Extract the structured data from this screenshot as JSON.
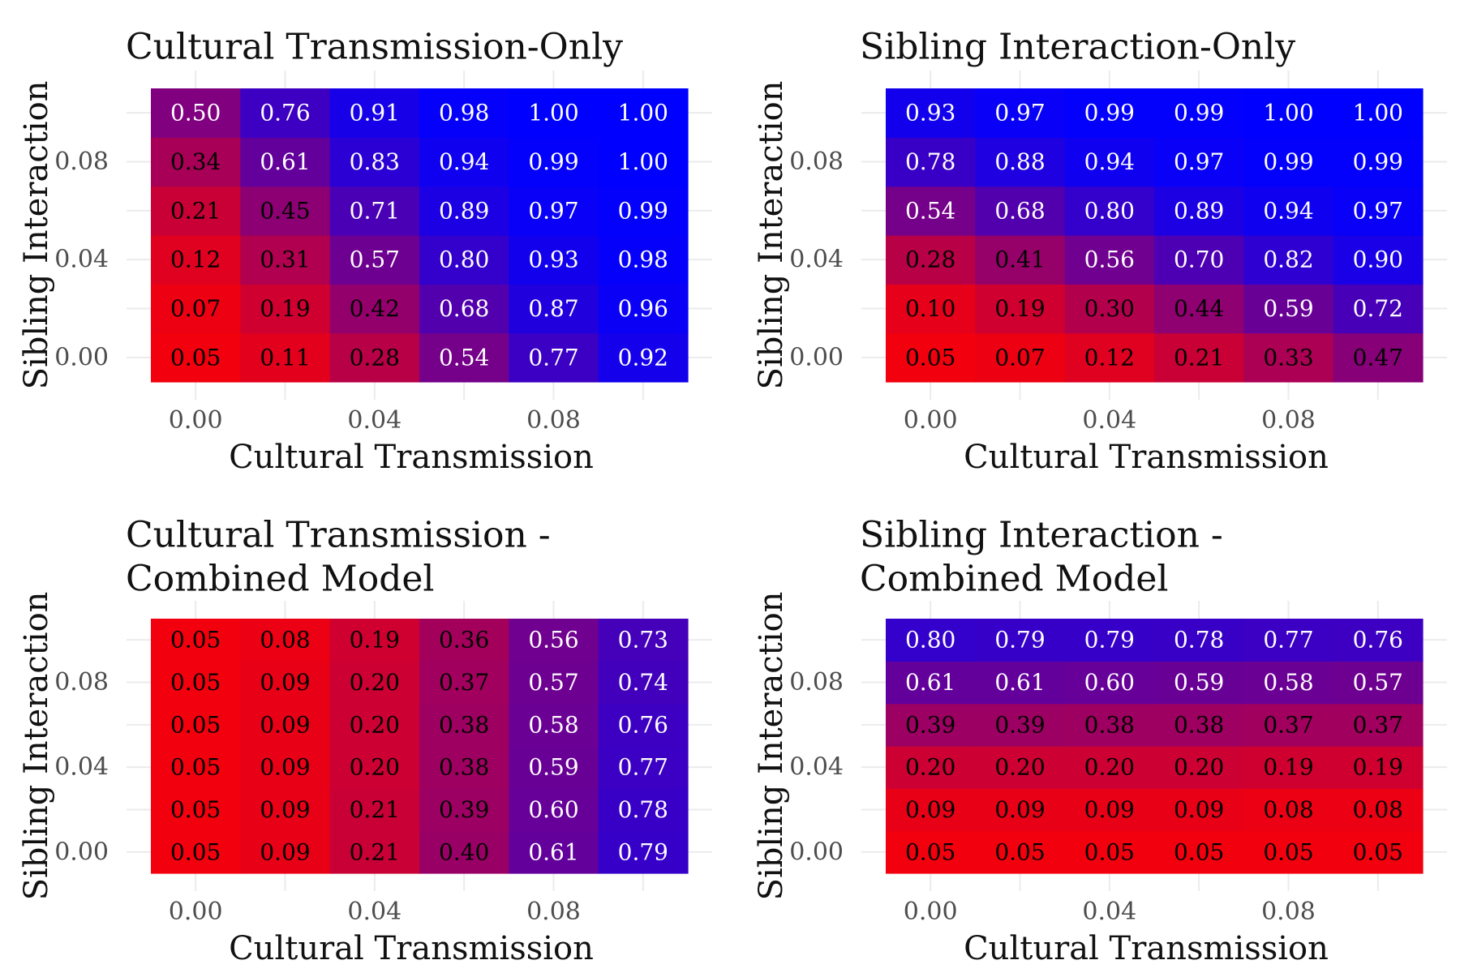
{
  "chart_data": [
    {
      "type": "heatmap",
      "title": "Cultural Transmission-Only",
      "xlabel": "Cultural Transmission",
      "ylabel": "Sibling Interaction",
      "x": [
        0.0,
        0.02,
        0.04,
        0.06,
        0.08,
        0.1
      ],
      "y": [
        0.0,
        0.02,
        0.04,
        0.06,
        0.08,
        0.1
      ],
      "x_tick_labels": [
        "0.00",
        "0.04",
        "0.08"
      ],
      "y_tick_labels": [
        "0.00",
        "0.04",
        "0.08"
      ],
      "values": [
        [
          0.05,
          0.11,
          0.28,
          0.54,
          0.77,
          0.92
        ],
        [
          0.07,
          0.19,
          0.42,
          0.68,
          0.87,
          0.96
        ],
        [
          0.12,
          0.31,
          0.57,
          0.8,
          0.93,
          0.98
        ],
        [
          0.21,
          0.45,
          0.71,
          0.89,
          0.97,
          0.99
        ],
        [
          0.34,
          0.61,
          0.83,
          0.94,
          0.99,
          1.0
        ],
        [
          0.5,
          0.76,
          0.91,
          0.98,
          1.0,
          1.0
        ]
      ],
      "color_low": "#ff0000",
      "color_high": "#0000ff"
    },
    {
      "type": "heatmap",
      "title": "Sibling Interaction-Only",
      "xlabel": "Cultural Transmission",
      "ylabel": "Sibling Interaction",
      "x": [
        0.0,
        0.02,
        0.04,
        0.06,
        0.08,
        0.1
      ],
      "y": [
        0.0,
        0.02,
        0.04,
        0.06,
        0.08,
        0.1
      ],
      "x_tick_labels": [
        "0.00",
        "0.04",
        "0.08"
      ],
      "y_tick_labels": [
        "0.00",
        "0.04",
        "0.08"
      ],
      "values": [
        [
          0.05,
          0.07,
          0.12,
          0.21,
          0.33,
          0.47
        ],
        [
          0.1,
          0.19,
          0.3,
          0.44,
          0.59,
          0.72
        ],
        [
          0.28,
          0.41,
          0.56,
          0.7,
          0.82,
          0.9
        ],
        [
          0.54,
          0.68,
          0.8,
          0.89,
          0.94,
          0.97
        ],
        [
          0.78,
          0.88,
          0.94,
          0.97,
          0.99,
          0.99
        ],
        [
          0.93,
          0.97,
          0.99,
          0.99,
          1.0,
          1.0
        ]
      ],
      "color_low": "#ff0000",
      "color_high": "#0000ff"
    },
    {
      "type": "heatmap",
      "title": [
        "Cultural Transmission -",
        "Combined Model"
      ],
      "xlabel": "Cultural Transmission",
      "ylabel": "Sibling Interaction",
      "x": [
        0.0,
        0.02,
        0.04,
        0.06,
        0.08,
        0.1
      ],
      "y": [
        0.0,
        0.02,
        0.04,
        0.06,
        0.08,
        0.1
      ],
      "x_tick_labels": [
        "0.00",
        "0.04",
        "0.08"
      ],
      "y_tick_labels": [
        "0.00",
        "0.04",
        "0.08"
      ],
      "values": [
        [
          0.05,
          0.09,
          0.21,
          0.4,
          0.61,
          0.79
        ],
        [
          0.05,
          0.09,
          0.21,
          0.39,
          0.6,
          0.78
        ],
        [
          0.05,
          0.09,
          0.2,
          0.38,
          0.59,
          0.77
        ],
        [
          0.05,
          0.09,
          0.2,
          0.38,
          0.58,
          0.76
        ],
        [
          0.05,
          0.09,
          0.2,
          0.37,
          0.57,
          0.74
        ],
        [
          0.05,
          0.08,
          0.19,
          0.36,
          0.56,
          0.73
        ]
      ],
      "color_low": "#ff0000",
      "color_high": "#0000ff"
    },
    {
      "type": "heatmap",
      "title": [
        "Sibling Interaction -",
        "Combined Model"
      ],
      "xlabel": "Cultural Transmission",
      "ylabel": "Sibling Interaction",
      "x": [
        0.0,
        0.02,
        0.04,
        0.06,
        0.08,
        0.1
      ],
      "y": [
        0.0,
        0.02,
        0.04,
        0.06,
        0.08,
        0.1
      ],
      "x_tick_labels": [
        "0.00",
        "0.04",
        "0.08"
      ],
      "y_tick_labels": [
        "0.00",
        "0.04",
        "0.08"
      ],
      "values": [
        [
          0.05,
          0.05,
          0.05,
          0.05,
          0.05,
          0.05
        ],
        [
          0.09,
          0.09,
          0.09,
          0.09,
          0.08,
          0.08
        ],
        [
          0.2,
          0.2,
          0.2,
          0.2,
          0.19,
          0.19
        ],
        [
          0.39,
          0.39,
          0.38,
          0.38,
          0.37,
          0.37
        ],
        [
          0.61,
          0.61,
          0.6,
          0.59,
          0.58,
          0.57
        ],
        [
          0.8,
          0.79,
          0.79,
          0.78,
          0.77,
          0.76
        ]
      ],
      "color_low": "#ff0000",
      "color_high": "#0000ff"
    }
  ]
}
